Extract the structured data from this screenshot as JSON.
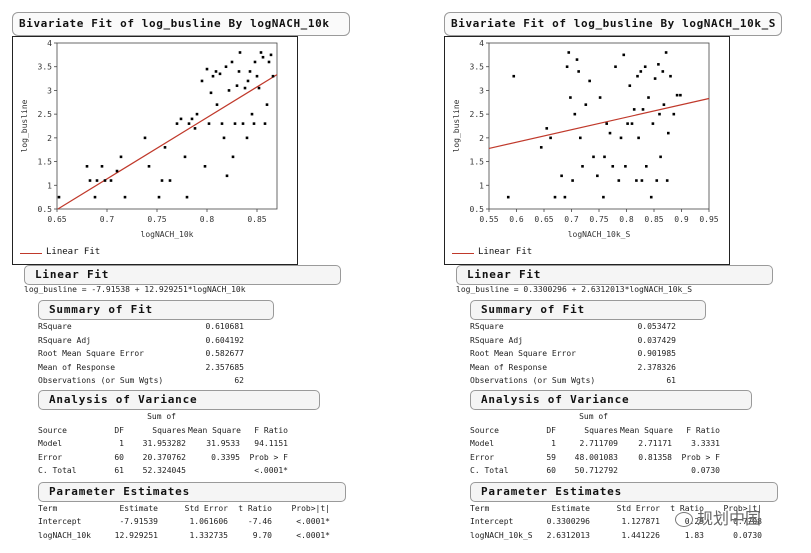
{
  "panels": [
    {
      "title": "Bivariate Fit of log_busline By logNACH_10k",
      "legend_label": "Linear Fit",
      "linear_fit_header": "Linear Fit",
      "equation": "log_busline = -7.91538 + 12.929251*logNACH_10k",
      "summary_header": "Summary of Fit",
      "summary_rows": [
        {
          "label": "RSquare",
          "value": "0.610681"
        },
        {
          "label": "RSquare Adj",
          "value": "0.604192"
        },
        {
          "label": "Root Mean Square Error",
          "value": "0.582677"
        },
        {
          "label": "Mean of Response",
          "value": "2.357685"
        },
        {
          "label": "Observations (or Sum Wgts)",
          "value": "62"
        }
      ],
      "anova_header": "Analysis of Variance",
      "anova_columns": [
        "Source",
        "DF",
        "Sum of Squares",
        "Mean Square",
        "F Ratio"
      ],
      "anova_rows": [
        [
          "Model",
          "1",
          "31.953282",
          "31.9533",
          "94.1151"
        ],
        [
          "Error",
          "60",
          "20.370762",
          "0.3395",
          "Prob > F"
        ],
        [
          "C. Total",
          "61",
          "52.324045",
          "",
          "<.0001*"
        ]
      ],
      "params_header": "Parameter Estimates",
      "params_columns": [
        "Term",
        "Estimate",
        "Std Error",
        "t Ratio",
        "Prob>|t|"
      ],
      "params_rows": [
        [
          "Intercept",
          "-7.91539",
          "1.061606",
          "-7.46",
          "<.0001*"
        ],
        [
          "logNACH_10k",
          "12.929251",
          "1.332735",
          "9.70",
          "<.0001*"
        ]
      ]
    },
    {
      "title": "Bivariate Fit of log_busline By logNACH_10k_S",
      "legend_label": "Linear Fit",
      "linear_fit_header": "Linear Fit",
      "equation": "log_busline = 0.3300296 + 2.6312013*logNACH_10k_S",
      "summary_header": "Summary of Fit",
      "summary_rows": [
        {
          "label": "RSquare",
          "value": "0.053472"
        },
        {
          "label": "RSquare Adj",
          "value": "0.037429"
        },
        {
          "label": "Root Mean Square Error",
          "value": "0.901985"
        },
        {
          "label": "Mean of Response",
          "value": "2.378326"
        },
        {
          "label": "Observations (or Sum Wgts)",
          "value": "61"
        }
      ],
      "anova_header": "Analysis of Variance",
      "anova_columns": [
        "Source",
        "DF",
        "Sum of Squares",
        "Mean Square",
        "F Ratio"
      ],
      "anova_rows": [
        [
          "Model",
          "1",
          "2.711709",
          "2.71171",
          "3.3331"
        ],
        [
          "Error",
          "59",
          "48.001083",
          "0.81358",
          "Prob > F"
        ],
        [
          "C. Total",
          "60",
          "50.712792",
          "",
          "0.0730"
        ]
      ],
      "params_header": "Parameter Estimates",
      "params_columns": [
        "Term",
        "Estimate",
        "Std Error",
        "t Ratio",
        "Prob>|t|"
      ],
      "params_rows": [
        [
          "Intercept",
          "0.3300296",
          "1.127871",
          "0.29",
          "0.7708"
        ],
        [
          "logNACH_10k_S",
          "2.6312013",
          "1.441226",
          "1.83",
          "0.0730"
        ]
      ]
    }
  ],
  "watermark_text": "规划中国",
  "chart_data": [
    {
      "type": "scatter",
      "title": "Bivariate Fit of log_busline By logNACH_10k",
      "xlabel": "logNACH_10k",
      "ylabel": "log_busline",
      "xlim": [
        0.65,
        0.87
      ],
      "ylim": [
        0.5,
        4.0
      ],
      "xticks": [
        0.65,
        0.7,
        0.75,
        0.8,
        0.85
      ],
      "yticks": [
        0.5,
        1,
        1.5,
        2,
        2.5,
        3,
        3.5,
        4
      ],
      "fit": {
        "intercept": -7.91539,
        "slope": 12.929251,
        "color": "#c0392b"
      },
      "points": [
        [
          0.652,
          0.75
        ],
        [
          0.68,
          1.4
        ],
        [
          0.683,
          1.1
        ],
        [
          0.688,
          0.75
        ],
        [
          0.69,
          1.1
        ],
        [
          0.695,
          1.4
        ],
        [
          0.698,
          1.1
        ],
        [
          0.704,
          1.1
        ],
        [
          0.71,
          1.3
        ],
        [
          0.714,
          1.6
        ],
        [
          0.718,
          0.75
        ],
        [
          0.738,
          2.0
        ],
        [
          0.742,
          1.4
        ],
        [
          0.752,
          0.75
        ],
        [
          0.755,
          1.1
        ],
        [
          0.758,
          1.8
        ],
        [
          0.763,
          1.1
        ],
        [
          0.77,
          2.3
        ],
        [
          0.774,
          2.4
        ],
        [
          0.778,
          1.6
        ],
        [
          0.78,
          0.75
        ],
        [
          0.782,
          2.3
        ],
        [
          0.785,
          2.4
        ],
        [
          0.788,
          2.2
        ],
        [
          0.79,
          2.5
        ],
        [
          0.795,
          3.2
        ],
        [
          0.798,
          1.4
        ],
        [
          0.8,
          3.45
        ],
        [
          0.802,
          2.3
        ],
        [
          0.804,
          2.95
        ],
        [
          0.806,
          3.3
        ],
        [
          0.809,
          3.4
        ],
        [
          0.81,
          2.7
        ],
        [
          0.813,
          3.35
        ],
        [
          0.815,
          2.3
        ],
        [
          0.817,
          2.0
        ],
        [
          0.819,
          3.5
        ],
        [
          0.82,
          1.2
        ],
        [
          0.822,
          3.0
        ],
        [
          0.825,
          3.6
        ],
        [
          0.826,
          1.6
        ],
        [
          0.828,
          2.3
        ],
        [
          0.83,
          3.1
        ],
        [
          0.832,
          3.4
        ],
        [
          0.833,
          3.8
        ],
        [
          0.836,
          2.3
        ],
        [
          0.838,
          3.05
        ],
        [
          0.84,
          2.0
        ],
        [
          0.841,
          3.2
        ],
        [
          0.843,
          3.4
        ],
        [
          0.845,
          2.5
        ],
        [
          0.847,
          2.3
        ],
        [
          0.848,
          3.6
        ],
        [
          0.85,
          3.3
        ],
        [
          0.852,
          3.05
        ],
        [
          0.854,
          3.8
        ],
        [
          0.856,
          3.7
        ],
        [
          0.858,
          2.3
        ],
        [
          0.86,
          2.7
        ],
        [
          0.862,
          3.6
        ],
        [
          0.864,
          3.75
        ],
        [
          0.866,
          3.3
        ]
      ]
    },
    {
      "type": "scatter",
      "title": "Bivariate Fit of log_busline By logNACH_10k_S",
      "xlabel": "logNACH_10k_S",
      "ylabel": "log_busline",
      "xlim": [
        0.55,
        0.95
      ],
      "ylim": [
        0.5,
        4.0
      ],
      "xticks": [
        0.55,
        0.6,
        0.65,
        0.7,
        0.75,
        0.8,
        0.85,
        0.9,
        0.95
      ],
      "yticks": [
        0.5,
        1,
        1.5,
        2,
        2.5,
        3,
        3.5,
        4
      ],
      "fit": {
        "intercept": 0.3300296,
        "slope": 2.6312013,
        "color": "#c0392b"
      },
      "points": [
        [
          0.585,
          0.75
        ],
        [
          0.595,
          3.3
        ],
        [
          0.645,
          1.8
        ],
        [
          0.655,
          2.2
        ],
        [
          0.662,
          2.0
        ],
        [
          0.67,
          0.75
        ],
        [
          0.682,
          1.2
        ],
        [
          0.688,
          0.75
        ],
        [
          0.692,
          3.5
        ],
        [
          0.695,
          3.8
        ],
        [
          0.698,
          2.85
        ],
        [
          0.702,
          1.1
        ],
        [
          0.706,
          2.5
        ],
        [
          0.71,
          3.65
        ],
        [
          0.713,
          3.4
        ],
        [
          0.716,
          2.0
        ],
        [
          0.72,
          1.4
        ],
        [
          0.726,
          2.7
        ],
        [
          0.733,
          3.2
        ],
        [
          0.74,
          1.6
        ],
        [
          0.747,
          1.2
        ],
        [
          0.752,
          2.85
        ],
        [
          0.758,
          0.75
        ],
        [
          0.76,
          1.6
        ],
        [
          0.764,
          2.3
        ],
        [
          0.77,
          2.1
        ],
        [
          0.775,
          1.4
        ],
        [
          0.78,
          3.5
        ],
        [
          0.786,
          1.1
        ],
        [
          0.79,
          2.0
        ],
        [
          0.795,
          3.75
        ],
        [
          0.798,
          1.4
        ],
        [
          0.802,
          2.3
        ],
        [
          0.806,
          3.1
        ],
        [
          0.81,
          2.3
        ],
        [
          0.814,
          2.6
        ],
        [
          0.818,
          1.1
        ],
        [
          0.82,
          3.3
        ],
        [
          0.822,
          2.0
        ],
        [
          0.826,
          3.4
        ],
        [
          0.828,
          1.1
        ],
        [
          0.83,
          2.6
        ],
        [
          0.834,
          3.5
        ],
        [
          0.836,
          1.4
        ],
        [
          0.84,
          2.85
        ],
        [
          0.845,
          0.75
        ],
        [
          0.848,
          2.3
        ],
        [
          0.852,
          3.25
        ],
        [
          0.855,
          1.1
        ],
        [
          0.858,
          3.55
        ],
        [
          0.86,
          2.5
        ],
        [
          0.862,
          1.6
        ],
        [
          0.866,
          3.4
        ],
        [
          0.868,
          2.7
        ],
        [
          0.872,
          3.8
        ],
        [
          0.874,
          1.1
        ],
        [
          0.876,
          2.1
        ],
        [
          0.88,
          3.3
        ],
        [
          0.886,
          2.5
        ],
        [
          0.892,
          2.9
        ],
        [
          0.898,
          2.9
        ]
      ]
    }
  ]
}
